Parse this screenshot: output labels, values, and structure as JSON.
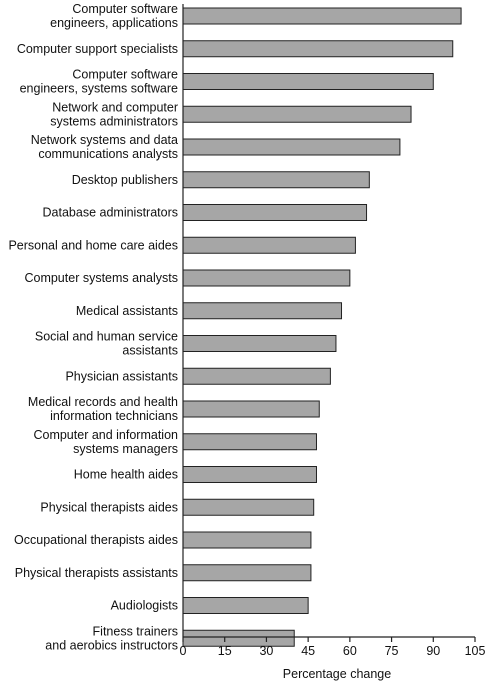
{
  "chart_data": {
    "type": "bar",
    "orientation": "horizontal",
    "title": "",
    "xlabel": "Percentage change",
    "ylabel": "",
    "xlim": [
      0,
      105
    ],
    "xticks": [
      0,
      15,
      30,
      45,
      60,
      75,
      90,
      105
    ],
    "grid": false,
    "bar_color": "#a6a6a6",
    "categories": [
      "Computer software engineers, applications",
      "Computer support specialists",
      "Computer software engineers, systems software",
      "Network and computer systems administrators",
      "Network systems and data communications analysts",
      "Desktop publishers",
      "Database administrators",
      "Personal and home care aides",
      "Computer systems analysts",
      "Medical assistants",
      "Social and human service assistants",
      "Physician assistants",
      "Medical records and health information technicians",
      "Computer and information systems managers",
      "Home health aides",
      "Physical therapists aides",
      "Occupational therapists aides",
      "Physical therapists assistants",
      "Audiologists",
      "Fitness trainers and aerobics instructors"
    ],
    "category_lines": [
      [
        "Computer software",
        "engineers, applications"
      ],
      [
        "Computer support specialists"
      ],
      [
        "Computer software",
        "engineers, systems software"
      ],
      [
        "Network and computer",
        "systems administrators"
      ],
      [
        "Network systems and data",
        "communications analysts"
      ],
      [
        "Desktop publishers"
      ],
      [
        "Database administrators"
      ],
      [
        "Personal and home care aides"
      ],
      [
        "Computer systems analysts"
      ],
      [
        "Medical assistants"
      ],
      [
        "Social and human service",
        "assistants"
      ],
      [
        "Physician assistants"
      ],
      [
        "Medical records and health",
        "information technicians"
      ],
      [
        "Computer and information",
        "systems managers"
      ],
      [
        "Home health aides"
      ],
      [
        "Physical therapists aides"
      ],
      [
        "Occupational therapists aides"
      ],
      [
        "Physical therapists assistants"
      ],
      [
        "Audiologists"
      ],
      [
        "Fitness trainers",
        "and aerobics instructors"
      ]
    ],
    "values": [
      100,
      97,
      90,
      82,
      78,
      67,
      66,
      62,
      60,
      57,
      55,
      53,
      49,
      48,
      48,
      47,
      46,
      46,
      45,
      40
    ]
  }
}
